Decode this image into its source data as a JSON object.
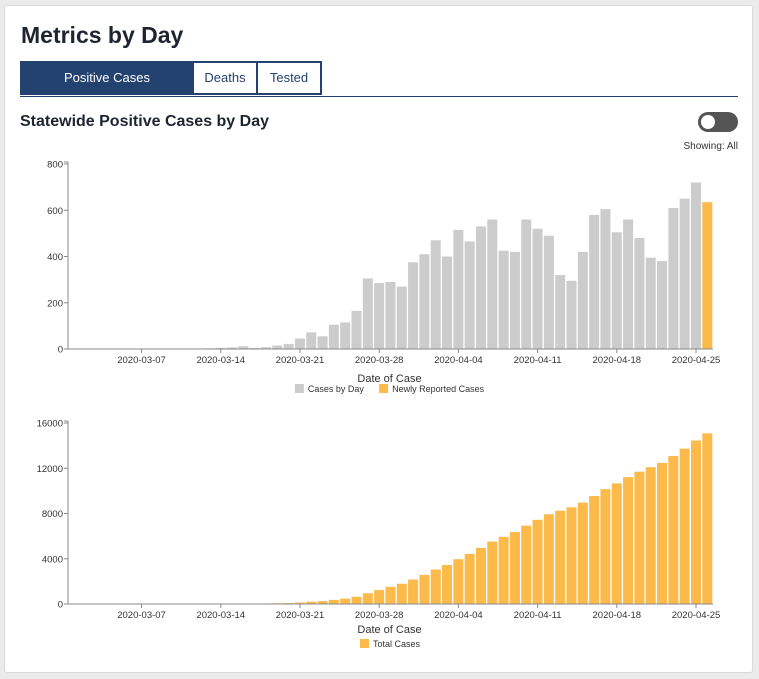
{
  "page": {
    "title": "Metrics by Day",
    "tabs": [
      {
        "label": "Positive Cases",
        "active": true
      },
      {
        "label": "Deaths",
        "active": false
      },
      {
        "label": "Tested",
        "active": false
      }
    ],
    "section_title": "Statewide Positive Cases by Day",
    "showing_label": "Showing: All"
  },
  "colors": {
    "gray_bar": "#cccccc",
    "orange_bar": "#fbba4a",
    "axis": "#888888",
    "tab_accent": "#24426f"
  },
  "chart_data": [
    {
      "type": "bar",
      "title": "Cases by Day",
      "xlabel": "Date of Case",
      "ylabel": "",
      "ylim": [
        0,
        800
      ],
      "yticks": [
        "0",
        "200",
        "400",
        "600",
        "800"
      ],
      "x_start": "2020-03-01",
      "xticks": [
        "2020-03-07",
        "2020-03-14",
        "2020-03-21",
        "2020-03-28",
        "2020-04-04",
        "2020-04-11",
        "2020-04-18",
        "2020-04-25"
      ],
      "legend": [
        "Cases by Day",
        "Newly Reported Cases"
      ],
      "series": [
        {
          "name": "Cases by Day",
          "color": "#cccccc",
          "values": [
            1,
            0,
            0,
            0,
            0,
            1,
            1,
            0,
            2,
            0,
            1,
            2,
            3,
            5,
            7,
            12,
            5,
            8,
            15,
            22,
            45,
            72,
            55,
            105,
            115,
            165,
            305,
            285,
            290,
            270,
            375,
            410,
            470,
            400,
            515,
            465,
            530,
            560,
            425,
            420,
            560,
            520,
            490,
            320,
            295,
            420,
            580,
            605,
            505,
            560,
            480,
            395,
            380,
            610,
            650,
            720,
            0
          ]
        },
        {
          "name": "Newly Reported Cases",
          "color": "#fbba4a",
          "values": [
            0,
            0,
            0,
            0,
            0,
            0,
            0,
            0,
            0,
            0,
            0,
            0,
            0,
            0,
            0,
            0,
            0,
            0,
            0,
            0,
            0,
            0,
            0,
            0,
            0,
            0,
            0,
            0,
            0,
            0,
            0,
            0,
            0,
            0,
            0,
            0,
            0,
            0,
            0,
            0,
            0,
            0,
            0,
            0,
            0,
            0,
            0,
            0,
            0,
            0,
            0,
            0,
            0,
            0,
            0,
            0,
            635
          ]
        }
      ]
    },
    {
      "type": "bar",
      "title": "Total Cases",
      "xlabel": "Date of Case",
      "ylabel": "",
      "ylim": [
        0,
        16000
      ],
      "yticks": [
        "0",
        "4000",
        "8000",
        "12000",
        "16000"
      ],
      "x_start": "2020-03-01",
      "xticks": [
        "2020-03-07",
        "2020-03-14",
        "2020-03-21",
        "2020-03-28",
        "2020-04-04",
        "2020-04-11",
        "2020-04-18",
        "2020-04-25"
      ],
      "legend": [
        "Total Cases"
      ],
      "series": [
        {
          "name": "Total Cases",
          "color": "#fbba4a",
          "values": [
            1,
            1,
            1,
            1,
            1,
            2,
            3,
            3,
            5,
            5,
            6,
            8,
            11,
            16,
            23,
            35,
            40,
            48,
            63,
            85,
            130,
            202,
            257,
            362,
            477,
            642,
            947,
            1232,
            1522,
            1792,
            2167,
            2577,
            3047,
            3447,
            3962,
            4427,
            4957,
            5517,
            5942,
            6362,
            6922,
            7442,
            7932,
            8252,
            8547,
            8967,
            9547,
            10152,
            10657,
            11217,
            11697,
            12092,
            12472,
            13082,
            13732,
            14452,
            15087
          ]
        }
      ]
    }
  ]
}
